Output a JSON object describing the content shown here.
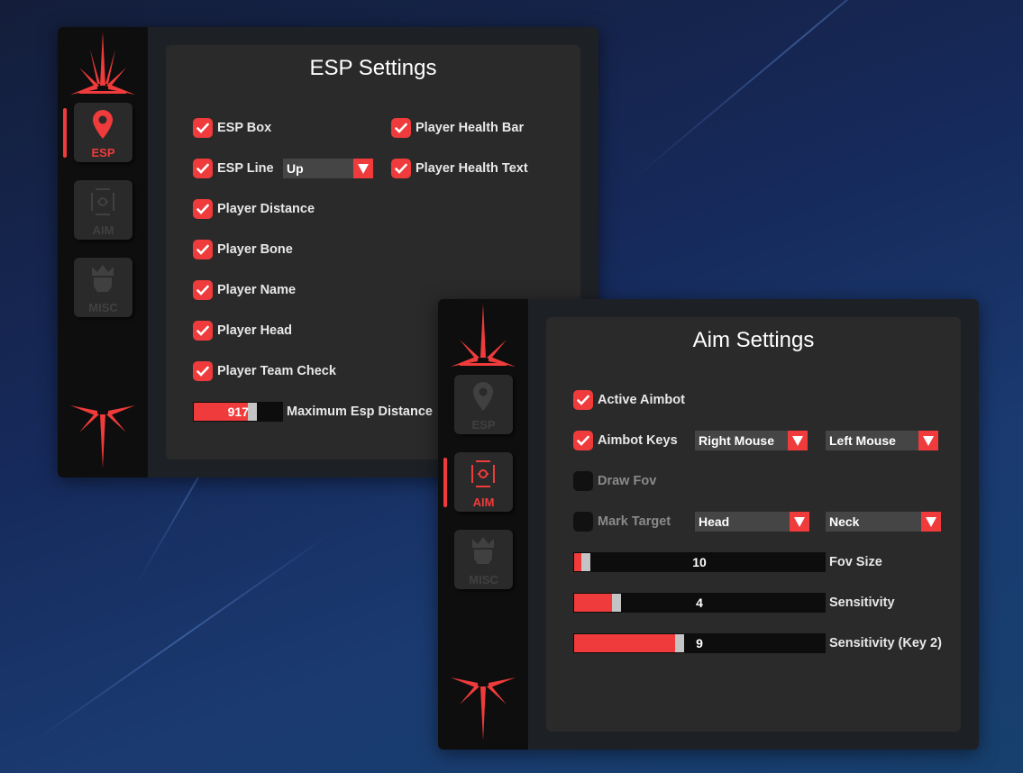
{
  "colors": {
    "accent": "#ef3b3b",
    "panel": "#2a2a2a",
    "sidebar": "#0e0e0e"
  },
  "nav": {
    "esp": "ESP",
    "aim": "AIM",
    "misc": "MISC"
  },
  "esp": {
    "title": "ESP Settings",
    "left": [
      {
        "label": "ESP Box",
        "checked": true
      },
      {
        "label": "ESP Line",
        "checked": true
      },
      {
        "label": "Player Distance",
        "checked": true
      },
      {
        "label": "Player Bone",
        "checked": true
      },
      {
        "label": "Player Name",
        "checked": true
      },
      {
        "label": "Player Head",
        "checked": true
      },
      {
        "label": "Player Team Check",
        "checked": true
      }
    ],
    "right": [
      {
        "label": "Player Health Bar",
        "checked": true
      },
      {
        "label": "Player Health Text",
        "checked": true
      }
    ],
    "line_dropdown": "Up",
    "distance_slider": {
      "value": "917",
      "label": "Maximum Esp Distance",
      "fraction": 0.6
    }
  },
  "aim": {
    "title": "Aim Settings",
    "rows": [
      {
        "label": "Active Aimbot",
        "checked": true
      },
      {
        "label": "Aimbot Keys",
        "checked": true
      },
      {
        "label": "Draw Fov",
        "checked": false
      },
      {
        "label": "Mark Target",
        "checked": false
      }
    ],
    "keys_dropdowns": [
      "Right Mouse",
      "Left Mouse"
    ],
    "target_dropdowns": [
      "Head",
      "Neck"
    ],
    "sliders": [
      {
        "value": "10",
        "label": "Fov Size",
        "fraction": 0.03
      },
      {
        "value": "4",
        "label": "Sensitivity",
        "fraction": 0.15
      },
      {
        "value": "9",
        "label": "Sensitivity (Key 2)",
        "fraction": 0.4
      }
    ]
  }
}
